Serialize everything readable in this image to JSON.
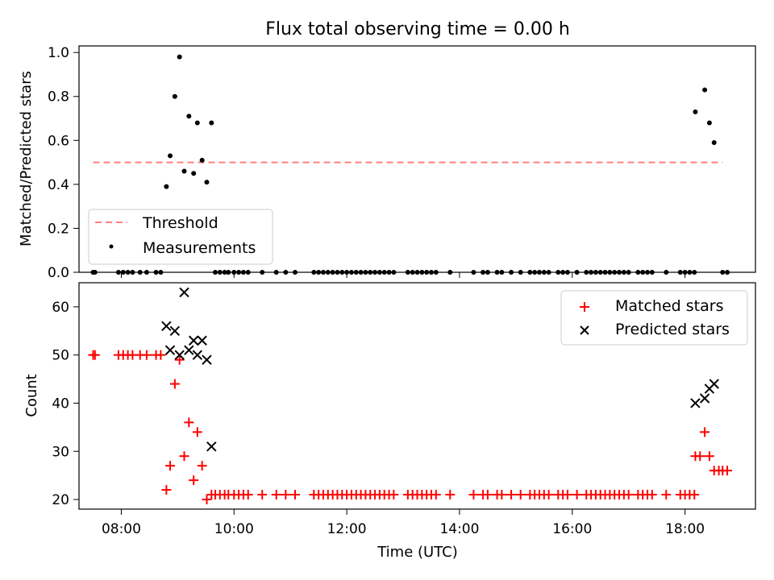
{
  "chart_data": [
    {
      "type": "scatter",
      "title": "Flux total observing time = 0.00 h",
      "xlabel": "",
      "ylabel": "Matched/Predicted stars",
      "xlim": [
        "07:15",
        "19:15"
      ],
      "ylim": [
        0.0,
        1.03
      ],
      "yticks": [
        "0.0",
        "0.2",
        "0.4",
        "0.6",
        "0.8",
        "1.0"
      ],
      "threshold": {
        "name": "Threshold",
        "color": "#ff7f7f",
        "x": [
          "07:30",
          "18:40"
        ],
        "y": 0.5
      },
      "measurements": {
        "name": "Measurements",
        "color": "#000000",
        "points": [
          [
            "08:48",
            0.39
          ],
          [
            "08:52",
            0.53
          ],
          [
            "08:57",
            0.8
          ],
          [
            "09:02",
            0.98
          ],
          [
            "09:07",
            0.46
          ],
          [
            "09:12",
            0.71
          ],
          [
            "09:17",
            0.45
          ],
          [
            "09:21",
            0.68
          ],
          [
            "09:26",
            0.51
          ],
          [
            "09:31",
            0.41
          ],
          [
            "09:36",
            0.68
          ],
          [
            "18:11",
            0.73
          ],
          [
            "18:21",
            0.83
          ],
          [
            "18:26",
            0.68
          ],
          [
            "18:31",
            0.59
          ]
        ],
        "zero_x": [
          "07:30",
          "07:32",
          "07:57",
          "08:02",
          "08:07",
          "08:12",
          "08:20",
          "08:27",
          "08:37",
          "08:42",
          "09:40",
          "09:45",
          "09:50",
          "09:54",
          "10:00",
          "10:05",
          "10:10",
          "10:15",
          "10:30",
          "10:45",
          "10:55",
          "11:05",
          "11:25",
          "11:30",
          "11:35",
          "11:40",
          "11:45",
          "11:50",
          "11:55",
          "12:00",
          "12:05",
          "12:10",
          "12:15",
          "12:20",
          "12:25",
          "12:30",
          "12:35",
          "12:40",
          "12:45",
          "12:50",
          "13:05",
          "13:10",
          "13:15",
          "13:20",
          "13:25",
          "13:30",
          "13:35",
          "13:50",
          "14:15",
          "14:25",
          "14:30",
          "14:40",
          "14:45",
          "14:55",
          "15:05",
          "15:15",
          "15:20",
          "15:25",
          "15:30",
          "15:35",
          "15:45",
          "15:50",
          "15:55",
          "16:05",
          "16:15",
          "16:20",
          "16:25",
          "16:30",
          "16:35",
          "16:40",
          "16:45",
          "16:50",
          "16:55",
          "17:00",
          "17:10",
          "17:15",
          "17:20",
          "17:25",
          "17:40",
          "17:55",
          "18:00",
          "18:05",
          "18:10",
          "18:40",
          "18:45"
        ]
      },
      "legend": [
        "Threshold",
        "Measurements"
      ],
      "legend_position": "lower-left"
    },
    {
      "type": "scatter",
      "title": "",
      "xlabel": "Time (UTC)",
      "ylabel": "Count",
      "xlim": [
        "07:15",
        "19:15"
      ],
      "ylim": [
        18,
        65
      ],
      "yticks": [
        "20",
        "30",
        "40",
        "50",
        "60"
      ],
      "xticks": [
        "08:00",
        "10:00",
        "12:00",
        "14:00",
        "16:00",
        "18:00"
      ],
      "series": [
        {
          "name": "Matched stars",
          "marker": "plus",
          "color": "#ff0000",
          "points": [
            [
              "07:30",
              50
            ],
            [
              "07:32",
              50
            ],
            [
              "07:57",
              50
            ],
            [
              "08:02",
              50
            ],
            [
              "08:07",
              50
            ],
            [
              "08:12",
              50
            ],
            [
              "08:20",
              50
            ],
            [
              "08:27",
              50
            ],
            [
              "08:37",
              50
            ],
            [
              "08:42",
              50
            ],
            [
              "08:48",
              22
            ],
            [
              "08:52",
              27
            ],
            [
              "08:57",
              44
            ],
            [
              "09:02",
              49
            ],
            [
              "09:07",
              29
            ],
            [
              "09:12",
              36
            ],
            [
              "09:17",
              24
            ],
            [
              "09:21",
              34
            ],
            [
              "09:26",
              27
            ],
            [
              "09:31",
              20
            ],
            [
              "09:36",
              21
            ],
            [
              "09:40",
              21
            ],
            [
              "09:45",
              21
            ],
            [
              "09:50",
              21
            ],
            [
              "09:54",
              21
            ],
            [
              "10:00",
              21
            ],
            [
              "10:05",
              21
            ],
            [
              "10:10",
              21
            ],
            [
              "10:15",
              21
            ],
            [
              "10:30",
              21
            ],
            [
              "10:45",
              21
            ],
            [
              "10:55",
              21
            ],
            [
              "11:05",
              21
            ],
            [
              "11:25",
              21
            ],
            [
              "11:30",
              21
            ],
            [
              "11:35",
              21
            ],
            [
              "11:40",
              21
            ],
            [
              "11:45",
              21
            ],
            [
              "11:50",
              21
            ],
            [
              "11:55",
              21
            ],
            [
              "12:00",
              21
            ],
            [
              "12:05",
              21
            ],
            [
              "12:10",
              21
            ],
            [
              "12:15",
              21
            ],
            [
              "12:20",
              21
            ],
            [
              "12:25",
              21
            ],
            [
              "12:30",
              21
            ],
            [
              "12:35",
              21
            ],
            [
              "12:40",
              21
            ],
            [
              "12:45",
              21
            ],
            [
              "12:50",
              21
            ],
            [
              "13:05",
              21
            ],
            [
              "13:10",
              21
            ],
            [
              "13:15",
              21
            ],
            [
              "13:20",
              21
            ],
            [
              "13:25",
              21
            ],
            [
              "13:30",
              21
            ],
            [
              "13:35",
              21
            ],
            [
              "13:50",
              21
            ],
            [
              "14:15",
              21
            ],
            [
              "14:25",
              21
            ],
            [
              "14:30",
              21
            ],
            [
              "14:40",
              21
            ],
            [
              "14:45",
              21
            ],
            [
              "14:55",
              21
            ],
            [
              "15:05",
              21
            ],
            [
              "15:15",
              21
            ],
            [
              "15:20",
              21
            ],
            [
              "15:25",
              21
            ],
            [
              "15:30",
              21
            ],
            [
              "15:35",
              21
            ],
            [
              "15:45",
              21
            ],
            [
              "15:50",
              21
            ],
            [
              "15:55",
              21
            ],
            [
              "16:05",
              21
            ],
            [
              "16:15",
              21
            ],
            [
              "16:20",
              21
            ],
            [
              "16:25",
              21
            ],
            [
              "16:30",
              21
            ],
            [
              "16:35",
              21
            ],
            [
              "16:40",
              21
            ],
            [
              "16:45",
              21
            ],
            [
              "16:50",
              21
            ],
            [
              "16:55",
              21
            ],
            [
              "17:00",
              21
            ],
            [
              "17:10",
              21
            ],
            [
              "17:15",
              21
            ],
            [
              "17:20",
              21
            ],
            [
              "17:25",
              21
            ],
            [
              "17:40",
              21
            ],
            [
              "17:55",
              21
            ],
            [
              "18:00",
              21
            ],
            [
              "18:05",
              21
            ],
            [
              "18:10",
              21
            ],
            [
              "18:11",
              29
            ],
            [
              "18:16",
              29
            ],
            [
              "18:21",
              34
            ],
            [
              "18:26",
              29
            ],
            [
              "18:31",
              26
            ],
            [
              "18:36",
              26
            ],
            [
              "18:40",
              26
            ],
            [
              "18:45",
              26
            ]
          ]
        },
        {
          "name": "Predicted stars",
          "marker": "x",
          "color": "#000000",
          "points": [
            [
              "08:48",
              56
            ],
            [
              "08:52",
              51
            ],
            [
              "08:57",
              55
            ],
            [
              "09:02",
              50
            ],
            [
              "09:07",
              63
            ],
            [
              "09:12",
              51
            ],
            [
              "09:17",
              53
            ],
            [
              "09:21",
              50
            ],
            [
              "09:26",
              53
            ],
            [
              "09:31",
              49
            ],
            [
              "09:36",
              31
            ],
            [
              "18:11",
              40
            ],
            [
              "18:21",
              41
            ],
            [
              "18:26",
              43
            ],
            [
              "18:31",
              44
            ]
          ]
        }
      ],
      "legend_position": "top-right"
    }
  ]
}
